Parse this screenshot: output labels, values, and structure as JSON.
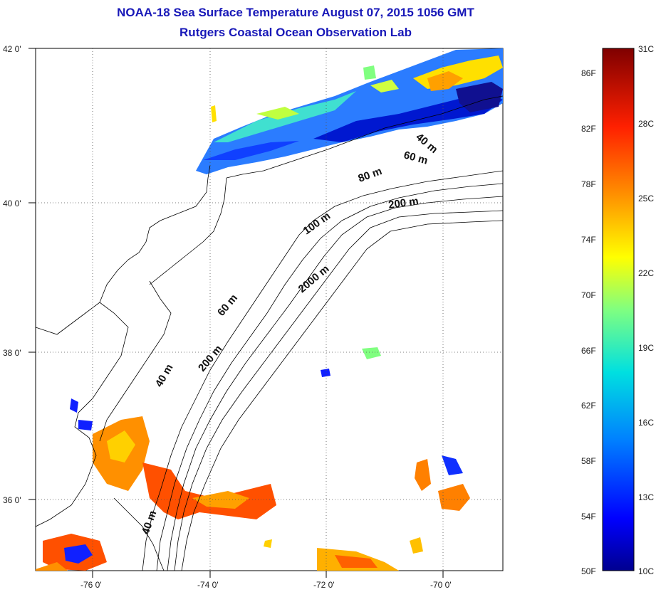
{
  "title": {
    "line1": "NOAA-18 Sea Surface Temperature August 07, 2015 1056 GMT",
    "line2": "Rutgers Coastal Ocean Observation Lab"
  },
  "map": {
    "lat_ticks": [
      "42 0'",
      "40 0'",
      "38 0'",
      "36 0'"
    ],
    "lon_ticks": [
      "-76 0'",
      "-74 0'",
      "-72 0'",
      "-70 0'"
    ],
    "lon_range": [
      -77,
      -69
    ],
    "lat_range": [
      35,
      42
    ],
    "grid": true,
    "contour_labels": [
      "40 m",
      "60 m",
      "80 m",
      "200 m",
      "100 m",
      "2000 m",
      "60 m",
      "200 m",
      "40 m",
      "40 m"
    ]
  },
  "colorbar": {
    "fahrenheit": [
      "86F",
      "82F",
      "78F",
      "74F",
      "70F",
      "66F",
      "62F",
      "58F",
      "54F",
      "50F"
    ],
    "celsius": [
      "31C",
      "28C",
      "25C",
      "22C",
      "19C",
      "16C",
      "13C",
      "10C"
    ],
    "min_c": 10,
    "max_c": 31,
    "colors": [
      "#00008f",
      "#0000ff",
      "#00bfff",
      "#40ffbf",
      "#c0ff40",
      "#ffff00",
      "#ffa000",
      "#ff3000",
      "#a00000",
      "#7f0000"
    ]
  }
}
